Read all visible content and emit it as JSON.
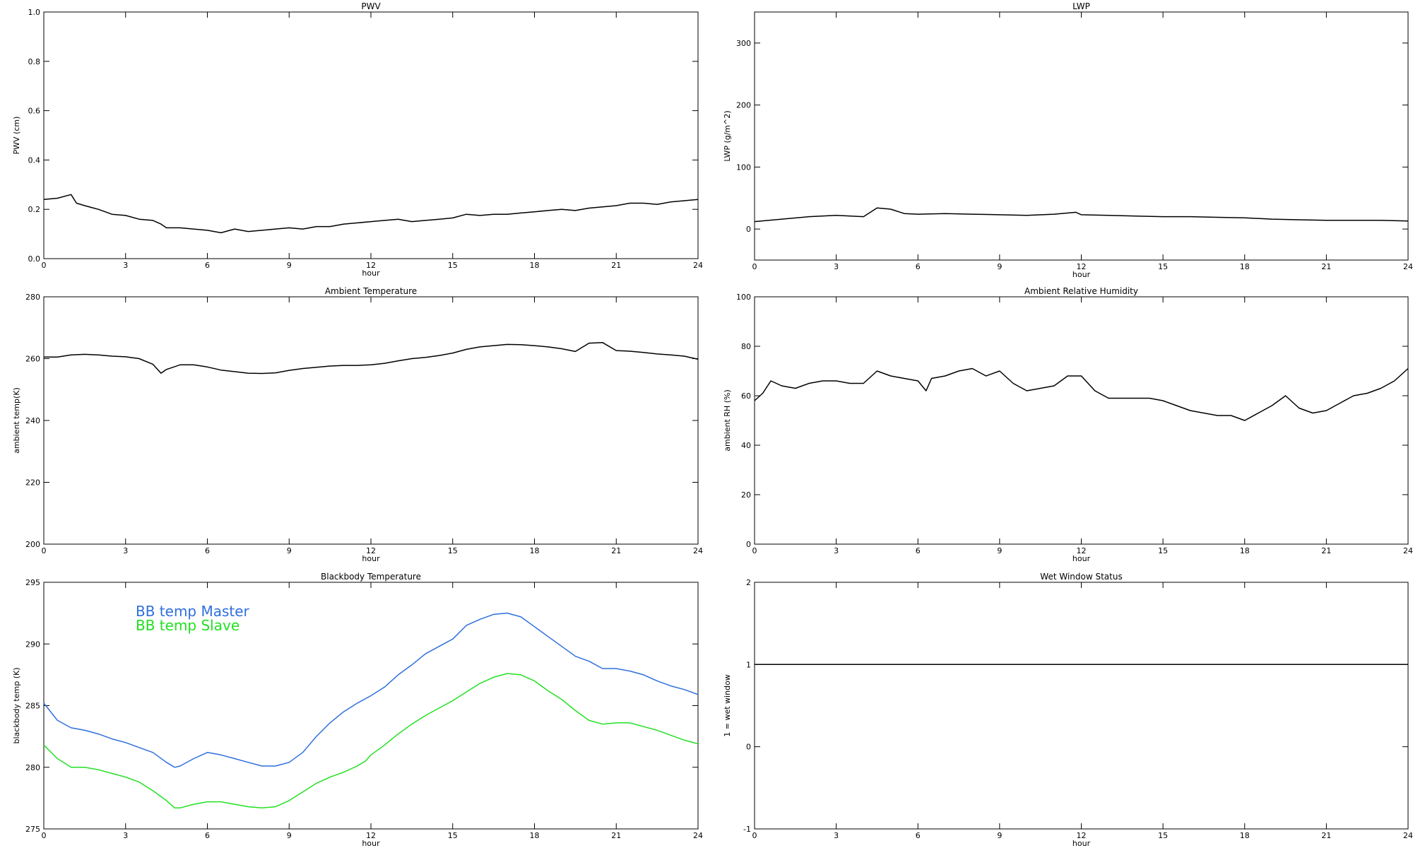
{
  "chart_data": [
    {
      "type": "line",
      "title": "PWV",
      "xlabel": "hour",
      "ylabel": "PWV (cm)",
      "xlim": [
        0,
        24
      ],
      "ylim": [
        0.0,
        1.0
      ],
      "xticks": [
        0,
        3,
        6,
        9,
        12,
        15,
        18,
        21,
        24
      ],
      "yticks": [
        0.0,
        0.2,
        0.4,
        0.6,
        0.8,
        1.0
      ],
      "ytick_labels": [
        "0.0",
        "0.2",
        "0.4",
        "0.6",
        "0.8",
        "1.0"
      ],
      "series": [
        {
          "color": "#000000",
          "x": [
            0,
            0.5,
            1,
            1.2,
            1.5,
            2,
            2.5,
            3,
            3.5,
            4,
            4.3,
            4.5,
            5,
            5.5,
            6,
            6.5,
            7,
            7.5,
            8,
            8.5,
            9,
            9.5,
            10,
            10.5,
            11,
            11.5,
            12,
            12.5,
            13,
            13.5,
            14,
            14.5,
            15,
            15.5,
            16,
            16.5,
            17,
            17.5,
            18,
            18.5,
            19,
            19.5,
            20,
            20.5,
            21,
            21.5,
            22,
            22.5,
            23,
            23.5,
            24
          ],
          "values": [
            0.24,
            0.245,
            0.26,
            0.225,
            0.215,
            0.2,
            0.18,
            0.175,
            0.16,
            0.155,
            0.14,
            0.125,
            0.125,
            0.12,
            0.115,
            0.105,
            0.12,
            0.11,
            0.115,
            0.12,
            0.125,
            0.12,
            0.13,
            0.13,
            0.14,
            0.145,
            0.15,
            0.155,
            0.16,
            0.15,
            0.155,
            0.16,
            0.165,
            0.18,
            0.175,
            0.18,
            0.18,
            0.185,
            0.19,
            0.195,
            0.2,
            0.195,
            0.205,
            0.21,
            0.215,
            0.225,
            0.225,
            0.22,
            0.23,
            0.235,
            0.24
          ]
        }
      ]
    },
    {
      "type": "line",
      "title": "LWP",
      "xlabel": "hour",
      "ylabel": "LWP (g/m^2)",
      "xlim": [
        0,
        24
      ],
      "ylim": [
        -50,
        350
      ],
      "xticks": [
        0,
        3,
        6,
        9,
        12,
        15,
        18,
        21,
        24
      ],
      "yticks": [
        0,
        100,
        200,
        300
      ],
      "ytick_labels": [
        "0",
        "100",
        "200",
        "300"
      ],
      "series": [
        {
          "color": "#000000",
          "x": [
            0,
            1,
            2,
            3,
            4,
            4.5,
            5,
            5.5,
            6,
            7,
            8,
            9,
            10,
            11,
            11.8,
            12,
            13,
            14,
            15,
            16,
            17,
            18,
            19,
            20,
            21,
            22,
            23,
            24
          ],
          "values": [
            12,
            16,
            20,
            22,
            20,
            34,
            32,
            25,
            24,
            25,
            24,
            23,
            22,
            24,
            27,
            23,
            22,
            21,
            20,
            20,
            19,
            18,
            16,
            15,
            14,
            14,
            14,
            13
          ]
        }
      ]
    },
    {
      "type": "line",
      "title": "Ambient Temperature",
      "xlabel": "hour",
      "ylabel": "ambient temp(K)",
      "xlim": [
        0,
        24
      ],
      "ylim": [
        200,
        280
      ],
      "xticks": [
        0,
        3,
        6,
        9,
        12,
        15,
        18,
        21,
        24
      ],
      "yticks": [
        200,
        220,
        240,
        260,
        280
      ],
      "ytick_labels": [
        "200",
        "220",
        "240",
        "260",
        "280"
      ],
      "series": [
        {
          "color": "#000000",
          "x": [
            0,
            0.5,
            1,
            1.5,
            2,
            2.5,
            3,
            3.5,
            4,
            4.3,
            4.5,
            5,
            5.5,
            6,
            6.5,
            7,
            7.5,
            8,
            8.5,
            9,
            9.5,
            10,
            10.5,
            11,
            11.5,
            12,
            12.5,
            13,
            13.5,
            14,
            14.5,
            15,
            15.5,
            16,
            16.5,
            17,
            17.5,
            18,
            18.5,
            19,
            19.5,
            20,
            20.5,
            21,
            21.5,
            22,
            22.5,
            23,
            23.5,
            24
          ],
          "values": [
            260.5,
            260.5,
            261.2,
            261.4,
            261.2,
            260.8,
            260.6,
            260,
            258.2,
            255.3,
            256.5,
            258,
            258,
            257.3,
            256.3,
            255.8,
            255.3,
            255.2,
            255.4,
            256.2,
            256.8,
            257.2,
            257.6,
            257.8,
            257.8,
            258,
            258.5,
            259.3,
            260,
            260.4,
            261,
            261.8,
            263,
            263.8,
            264.2,
            264.6,
            264.5,
            264.2,
            263.8,
            263.2,
            262.3,
            265,
            265.2,
            262.6,
            262.4,
            262,
            261.5,
            261.2,
            260.8,
            259.8
          ]
        }
      ]
    },
    {
      "type": "line",
      "title": "Ambient Relative Humidity",
      "xlabel": "hour",
      "ylabel": "ambient RH (%)",
      "xlim": [
        0,
        24
      ],
      "ylim": [
        0,
        100
      ],
      "xticks": [
        0,
        3,
        6,
        9,
        12,
        15,
        18,
        21,
        24
      ],
      "yticks": [
        0,
        20,
        40,
        60,
        80,
        100
      ],
      "ytick_labels": [
        "0",
        "20",
        "40",
        "60",
        "80",
        "100"
      ],
      "series": [
        {
          "color": "#000000",
          "x": [
            0,
            0.3,
            0.6,
            1,
            1.5,
            2,
            2.5,
            3,
            3.5,
            4,
            4.5,
            5,
            5.5,
            6,
            6.3,
            6.5,
            7,
            7.5,
            8,
            8.5,
            9,
            9.5,
            10,
            10.5,
            11,
            11.5,
            12,
            12.5,
            13,
            13.5,
            14,
            14.5,
            15,
            15.5,
            16,
            16.5,
            17,
            17.5,
            18,
            18.5,
            19,
            19.5,
            20,
            20.5,
            21,
            21.5,
            22,
            22.5,
            23,
            23.5,
            24
          ],
          "values": [
            58,
            61,
            66,
            64,
            63,
            65,
            66,
            66,
            65,
            65,
            70,
            68,
            67,
            66,
            62,
            67,
            68,
            70,
            71,
            68,
            70,
            65,
            62,
            63,
            64,
            68,
            68,
            62,
            59,
            59,
            59,
            59,
            58,
            56,
            54,
            53,
            52,
            52,
            50,
            53,
            56,
            60,
            55,
            53,
            54,
            57,
            60,
            61,
            63,
            66,
            71
          ]
        }
      ]
    },
    {
      "type": "line",
      "title": "Blackbody Temperature",
      "xlabel": "hour",
      "ylabel": "blackbody temp (K)",
      "xlim": [
        0,
        24
      ],
      "ylim": [
        275,
        295
      ],
      "xticks": [
        0,
        3,
        6,
        9,
        12,
        15,
        18,
        21,
        24
      ],
      "yticks": [
        275,
        280,
        285,
        290,
        295
      ],
      "ytick_labels": [
        "275",
        "280",
        "285",
        "290",
        "295"
      ],
      "legend": [
        "BB temp Master",
        "BB temp Slave"
      ],
      "legend_placement": "top-left",
      "series": [
        {
          "name": "BB temp Master",
          "color": "#2f6fdc",
          "x": [
            0,
            0.5,
            1,
            1.5,
            2,
            2.5,
            3,
            3.5,
            4,
            4.5,
            4.8,
            5,
            5.5,
            6,
            6.5,
            7,
            7.5,
            8,
            8.5,
            9,
            9.5,
            10,
            10.5,
            11,
            11.5,
            12,
            12.5,
            13,
            13.5,
            14,
            14.5,
            15,
            15.5,
            16,
            16.5,
            17,
            17.5,
            18,
            18.5,
            19,
            19.5,
            20,
            20.5,
            21,
            21.5,
            22,
            22.5,
            23,
            23.5,
            24
          ],
          "values": [
            285.2,
            283.8,
            283.2,
            283,
            282.7,
            282.3,
            282,
            281.6,
            281.2,
            280.4,
            280,
            280.1,
            280.7,
            281.2,
            281,
            280.7,
            280.4,
            280.1,
            280.1,
            280.4,
            281.2,
            282.5,
            283.6,
            284.5,
            285.2,
            285.8,
            286.5,
            287.5,
            288.3,
            289.2,
            289.8,
            290.4,
            291.5,
            292,
            292.4,
            292.5,
            292.2,
            291.4,
            290.6,
            289.8,
            289,
            288.6,
            288,
            288,
            287.8,
            287.5,
            287,
            286.6,
            286.3,
            285.9
          ]
        },
        {
          "name": "BB temp Slave",
          "color": "#22e022",
          "x": [
            0,
            0.5,
            1,
            1.5,
            2,
            2.5,
            3,
            3.5,
            4,
            4.5,
            4.8,
            5,
            5.5,
            6,
            6.5,
            7,
            7.5,
            8,
            8.5,
            9,
            9.5,
            10,
            10.5,
            11,
            11.5,
            11.8,
            12,
            12.5,
            13,
            13.5,
            14,
            14.5,
            15,
            15.5,
            16,
            16.5,
            17,
            17.5,
            18,
            18.5,
            19,
            19.5,
            20,
            20.5,
            21,
            21.5,
            22,
            22.5,
            23,
            23.5,
            24
          ],
          "values": [
            281.8,
            280.7,
            280,
            280,
            279.8,
            279.5,
            279.2,
            278.8,
            278.1,
            277.3,
            276.7,
            276.7,
            277,
            277.2,
            277.2,
            277,
            276.8,
            276.7,
            276.8,
            277.3,
            278,
            278.7,
            279.2,
            279.6,
            280.1,
            280.5,
            281,
            281.8,
            282.7,
            283.5,
            284.2,
            284.8,
            285.4,
            286.1,
            286.8,
            287.3,
            287.6,
            287.5,
            287,
            286.2,
            285.5,
            284.6,
            283.8,
            283.5,
            283.6,
            283.6,
            283.3,
            283,
            282.6,
            282.2,
            281.9
          ]
        }
      ]
    },
    {
      "type": "line",
      "title": "Wet Window Status",
      "xlabel": "hour",
      "ylabel": "1 = wet window",
      "xlim": [
        0,
        24
      ],
      "ylim": [
        -1,
        2
      ],
      "xticks": [
        0,
        3,
        6,
        9,
        12,
        15,
        18,
        21,
        24
      ],
      "yticks": [
        -1,
        0,
        1,
        2
      ],
      "ytick_labels": [
        "-1",
        "0",
        "1",
        "2"
      ],
      "series": [
        {
          "color": "#000000",
          "x": [
            0,
            24
          ],
          "values": [
            1,
            1
          ]
        }
      ]
    }
  ]
}
